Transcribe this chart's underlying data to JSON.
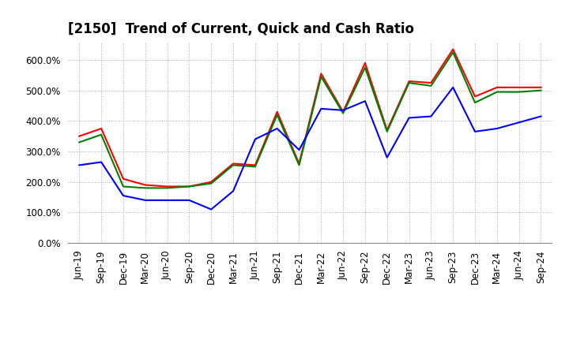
{
  "title": "[2150]  Trend of Current, Quick and Cash Ratio",
  "x_labels": [
    "Jun-19",
    "Sep-19",
    "Dec-19",
    "Mar-20",
    "Jun-20",
    "Sep-20",
    "Dec-20",
    "Mar-21",
    "Jun-21",
    "Sep-21",
    "Dec-21",
    "Mar-22",
    "Jun-22",
    "Sep-22",
    "Dec-22",
    "Mar-23",
    "Jun-23",
    "Sep-23",
    "Dec-23",
    "Mar-24",
    "Jun-24",
    "Sep-24"
  ],
  "current_ratio": [
    350,
    375,
    210,
    190,
    185,
    185,
    200,
    260,
    255,
    430,
    260,
    555,
    430,
    590,
    370,
    530,
    525,
    635,
    480,
    510,
    510,
    510
  ],
  "quick_ratio": [
    330,
    355,
    185,
    180,
    180,
    185,
    195,
    255,
    250,
    420,
    255,
    545,
    425,
    575,
    365,
    525,
    515,
    625,
    460,
    495,
    495,
    500
  ],
  "cash_ratio": [
    255,
    265,
    155,
    140,
    140,
    140,
    110,
    170,
    340,
    375,
    305,
    440,
    435,
    465,
    280,
    410,
    415,
    510,
    365,
    375,
    395,
    415
  ],
  "current_color": "#FF0000",
  "quick_color": "#008000",
  "cash_color": "#0000FF",
  "ylim": [
    0,
    660
  ],
  "yticks": [
    0,
    100,
    200,
    300,
    400,
    500,
    600
  ],
  "background_color": "#FFFFFF",
  "grid_color": "#AAAAAA",
  "line_width": 1.5,
  "title_fontsize": 12,
  "tick_fontsize": 8.5,
  "legend_fontsize": 9
}
